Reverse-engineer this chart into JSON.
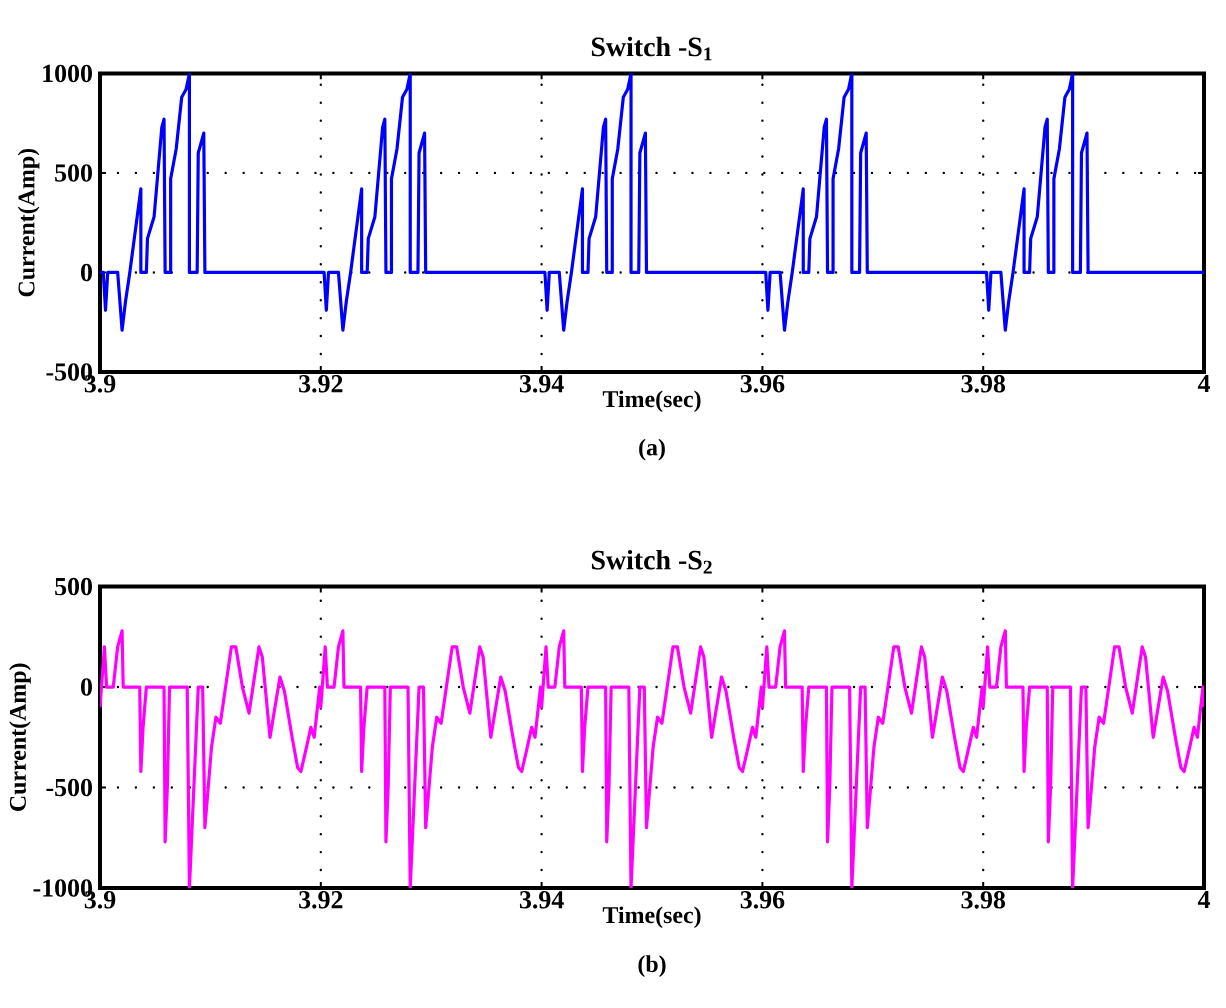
{
  "chart_data": [
    {
      "type": "line",
      "title": "Switch -S$_{1}$",
      "xlabel": "Time(sec)",
      "ylabel": "Current(Amp)",
      "annotations": [
        "(a)"
      ],
      "grid": true,
      "xlim": [
        3.9,
        4
      ],
      "xticks": [
        3.9,
        3.92,
        3.94,
        3.96,
        3.98,
        4
      ],
      "ylim": [
        -500,
        1000
      ],
      "yticks": [
        -500,
        0,
        500,
        1000
      ],
      "x": [
        3.9,
        3.9003,
        3.9005,
        3.9007,
        3.9016,
        3.902,
        3.9023,
        3.9027,
        3.9037,
        3.9037,
        3.9042,
        3.9043,
        3.9049,
        3.9056,
        3.9058,
        3.9059,
        3.9064,
        3.9064,
        3.9069,
        3.9074,
        3.9078,
        3.9081,
        3.9081,
        3.9088,
        3.9089,
        3.9094,
        3.9095,
        3.92,
        3.9203,
        3.9205,
        3.9207,
        3.9216,
        3.922,
        3.9223,
        3.9227,
        3.9237,
        3.9237,
        3.9242,
        3.9243,
        3.9249,
        3.9256,
        3.9258,
        3.9259,
        3.9264,
        3.9264,
        3.9269,
        3.9274,
        3.9278,
        3.9281,
        3.9281,
        3.9288,
        3.9289,
        3.9294,
        3.9295,
        3.94,
        3.9403,
        3.9405,
        3.9407,
        3.9416,
        3.942,
        3.9423,
        3.9427,
        3.9437,
        3.9437,
        3.9442,
        3.9443,
        3.9449,
        3.9456,
        3.9458,
        3.9459,
        3.9464,
        3.9464,
        3.9469,
        3.9474,
        3.9478,
        3.9481,
        3.9481,
        3.9488,
        3.9489,
        3.9494,
        3.9495,
        3.96,
        3.9603,
        3.9605,
        3.9607,
        3.9616,
        3.962,
        3.9623,
        3.9627,
        3.9637,
        3.9637,
        3.9642,
        3.9643,
        3.9649,
        3.9656,
        3.9658,
        3.9659,
        3.9664,
        3.9664,
        3.9669,
        3.9674,
        3.9678,
        3.9681,
        3.9681,
        3.9688,
        3.9689,
        3.9694,
        3.9695,
        3.98,
        3.9803,
        3.9805,
        3.9807,
        3.9816,
        3.982,
        3.9823,
        3.9827,
        3.9837,
        3.9837,
        3.9842,
        3.9843,
        3.9849,
        3.9856,
        3.9858,
        3.9859,
        3.9864,
        3.9864,
        3.9869,
        3.9874,
        3.9878,
        3.9881,
        3.9881,
        3.9888,
        3.9889,
        3.9894,
        3.9895,
        4
      ],
      "series": [
        {
          "color": "#0000ff",
          "values": [
            0,
            0,
            -190,
            0,
            0,
            -290,
            -150,
            0,
            420,
            0,
            0,
            170,
            280,
            730,
            770,
            0,
            0,
            470,
            620,
            880,
            920,
            1000,
            0,
            0,
            600,
            700,
            0,
            0,
            0,
            -190,
            0,
            0,
            -290,
            -150,
            0,
            420,
            0,
            0,
            170,
            280,
            730,
            770,
            0,
            0,
            470,
            620,
            880,
            920,
            1000,
            0,
            0,
            600,
            700,
            0,
            0,
            0,
            -190,
            0,
            0,
            -290,
            -150,
            0,
            420,
            0,
            0,
            170,
            280,
            730,
            770,
            0,
            0,
            470,
            620,
            880,
            920,
            1000,
            0,
            0,
            600,
            700,
            0,
            0,
            0,
            -190,
            0,
            0,
            -290,
            -150,
            0,
            420,
            0,
            0,
            170,
            280,
            730,
            770,
            0,
            0,
            470,
            620,
            880,
            920,
            1000,
            0,
            0,
            600,
            700,
            0,
            0,
            0,
            -190,
            0,
            0,
            -290,
            -150,
            0,
            420,
            0,
            0,
            170,
            280,
            730,
            770,
            0,
            0,
            470,
            620,
            880,
            920,
            1000,
            0,
            0,
            600,
            700,
            0,
            0
          ]
        }
      ]
    },
    {
      "type": "line",
      "title": "Switch -S$_{2}$",
      "xlabel": "Time(sec)",
      "ylabel": "Current(Amp)",
      "annotations": [
        "(b)"
      ],
      "grid": true,
      "xlim": [
        3.9,
        4
      ],
      "xticks": [
        3.9,
        3.92,
        3.94,
        3.96,
        3.98,
        4
      ],
      "ylim": [
        -1000,
        500
      ],
      "yticks": [
        -1000,
        -500,
        0,
        500
      ],
      "x": [
        3.9,
        3.9004,
        3.9006,
        3.9012,
        3.9016,
        3.902,
        3.9021,
        3.9036,
        3.9037,
        3.9039,
        3.9042,
        3.9058,
        3.9059,
        3.9061,
        3.9063,
        3.9079,
        3.9081,
        3.9085,
        3.9089,
        3.9093,
        3.9095,
        3.9101,
        3.9105,
        3.9109,
        3.9119,
        3.9123,
        3.9129,
        3.9135,
        3.9144,
        3.9147,
        3.9154,
        3.9163,
        3.9167,
        3.9174,
        3.9179,
        3.9182,
        3.9187,
        3.9191,
        3.9194,
        3.9199,
        3.92,
        3.9204,
        3.9206,
        3.9212,
        3.9216,
        3.922,
        3.9221,
        3.9236,
        3.9237,
        3.9239,
        3.9242,
        3.9258,
        3.9259,
        3.9261,
        3.9263,
        3.9279,
        3.9281,
        3.9285,
        3.9289,
        3.9293,
        3.9295,
        3.9301,
        3.9305,
        3.9309,
        3.9319,
        3.9323,
        3.9329,
        3.9335,
        3.9344,
        3.9347,
        3.9354,
        3.9363,
        3.9367,
        3.9374,
        3.9379,
        3.9382,
        3.9387,
        3.9391,
        3.9394,
        3.9399,
        3.94,
        3.9404,
        3.9406,
        3.9412,
        3.9416,
        3.942,
        3.9421,
        3.9436,
        3.9437,
        3.9439,
        3.9442,
        3.9458,
        3.9459,
        3.9461,
        3.9463,
        3.9479,
        3.9481,
        3.9485,
        3.9489,
        3.9493,
        3.9495,
        3.9501,
        3.9505,
        3.9509,
        3.9519,
        3.9523,
        3.9529,
        3.9535,
        3.9544,
        3.9547,
        3.9554,
        3.9563,
        3.9567,
        3.9574,
        3.9579,
        3.9582,
        3.9587,
        3.9591,
        3.9594,
        3.9599,
        3.96,
        3.9604,
        3.9606,
        3.9612,
        3.9616,
        3.962,
        3.9621,
        3.9636,
        3.9637,
        3.9639,
        3.9642,
        3.9658,
        3.9659,
        3.9661,
        3.9663,
        3.9679,
        3.9681,
        3.9685,
        3.9689,
        3.9693,
        3.9695,
        3.9701,
        3.9705,
        3.9709,
        3.9719,
        3.9723,
        3.9729,
        3.9735,
        3.9744,
        3.9747,
        3.9754,
        3.9763,
        3.9767,
        3.9774,
        3.9779,
        3.9782,
        3.9787,
        3.9791,
        3.9794,
        3.9799,
        3.98,
        3.9804,
        3.9806,
        3.9812,
        3.9816,
        3.982,
        3.9821,
        3.9836,
        3.9837,
        3.9839,
        3.9842,
        3.9858,
        3.9859,
        3.9861,
        3.9863,
        3.9879,
        3.9881,
        3.9885,
        3.9889,
        3.9893,
        3.9895,
        3.9901,
        3.9905,
        3.9909,
        3.9919,
        3.9923,
        3.9929,
        3.9935,
        3.9944,
        3.9947,
        3.9954,
        3.9963,
        3.9967,
        3.9974,
        3.9979,
        3.9982,
        3.9987,
        3.9991,
        3.9994,
        3.9999,
        4
      ],
      "series": [
        {
          "color": "#ff00ff",
          "values": [
            -100,
            200,
            0,
            0,
            200,
            280,
            0,
            0,
            -420,
            -200,
            0,
            0,
            -770,
            -500,
            0,
            0,
            -1000,
            -500,
            0,
            0,
            -700,
            -300,
            -150,
            -180,
            200,
            200,
            0,
            -130,
            200,
            150,
            -250,
            50,
            -20,
            -250,
            -400,
            -420,
            -300,
            -200,
            -250,
            0,
            -100,
            200,
            0,
            0,
            200,
            280,
            0,
            0,
            -420,
            -200,
            0,
            0,
            -770,
            -500,
            0,
            0,
            -1000,
            -500,
            0,
            0,
            -700,
            -300,
            -150,
            -180,
            200,
            200,
            0,
            -130,
            200,
            150,
            -250,
            50,
            -20,
            -250,
            -400,
            -420,
            -300,
            -200,
            -250,
            0,
            -100,
            200,
            0,
            0,
            200,
            280,
            0,
            0,
            -420,
            -200,
            0,
            0,
            -770,
            -500,
            0,
            0,
            -1000,
            -500,
            0,
            0,
            -700,
            -300,
            -150,
            -180,
            200,
            200,
            0,
            -130,
            200,
            150,
            -250,
            50,
            -20,
            -250,
            -400,
            -420,
            -300,
            -200,
            -250,
            0,
            -100,
            200,
            0,
            0,
            200,
            280,
            0,
            0,
            -420,
            -200,
            0,
            0,
            -770,
            -500,
            0,
            0,
            -1000,
            -500,
            0,
            0,
            -700,
            -300,
            -150,
            -180,
            200,
            200,
            0,
            -130,
            200,
            150,
            -250,
            50,
            -20,
            -250,
            -400,
            -420,
            -300,
            -200,
            -250,
            0,
            -100,
            200,
            0,
            0,
            200,
            280,
            0,
            0,
            -420,
            -200,
            0,
            0,
            -770,
            -500,
            0,
            0,
            -1000,
            -500,
            0,
            0,
            -700,
            -300,
            -150,
            -180,
            200,
            200,
            0,
            -130,
            200,
            150,
            -250,
            50,
            -20,
            -250,
            -400,
            -420,
            -300,
            -200,
            -250,
            0,
            -100
          ]
        }
      ]
    }
  ]
}
